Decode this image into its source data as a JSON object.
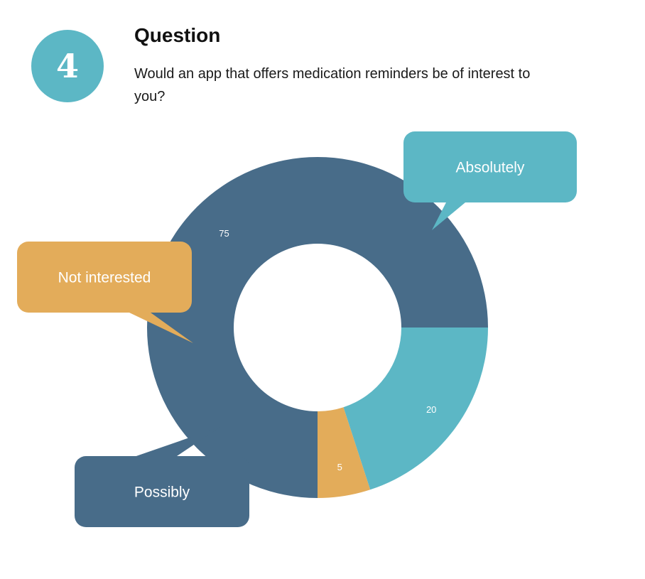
{
  "question": {
    "number": "4",
    "title": "Question",
    "text": "Would an app that offers medication reminders be of interest to you?"
  },
  "colors": {
    "badge": "#5cb7c5",
    "absolutely": "#486c89",
    "possibly": "#5cb7c5",
    "not_interested": "#e3ac5a",
    "label_text": "#ffffff"
  },
  "chart_data": {
    "type": "pie",
    "subtype": "donut",
    "categories": [
      "Absolutely",
      "Possibly",
      "Not interested"
    ],
    "values": [
      75,
      20,
      5
    ],
    "data_labels": [
      "75",
      "20",
      "5"
    ],
    "legend": "callouts"
  }
}
